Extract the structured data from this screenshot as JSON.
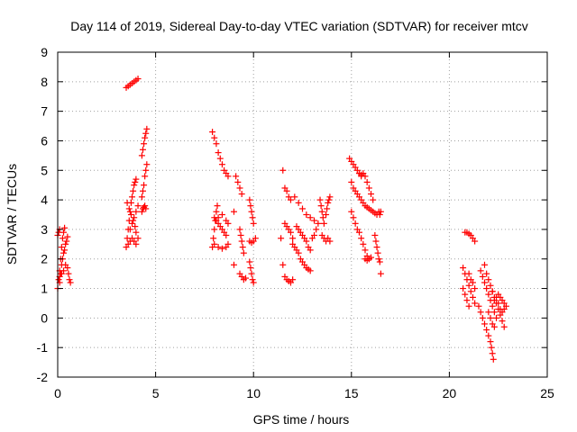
{
  "chart_data": {
    "type": "scatter",
    "title": "Day 114 of 2019, Sidereal Day-to-day VTEC variation (SDTVAR) for receiver mtcv",
    "xlabel": "GPS time / hours",
    "ylabel": "SDTVAR / TECUs",
    "xlim": [
      0,
      25
    ],
    "ylim": [
      -2,
      9
    ],
    "xticks": [
      0,
      5,
      10,
      15,
      20,
      25
    ],
    "yticks": [
      -2,
      -1,
      0,
      1,
      2,
      3,
      4,
      5,
      6,
      7,
      8,
      9
    ],
    "grid": true,
    "marker": "+",
    "color": "#ff0000",
    "tracks": [
      [
        [
          0.0,
          1.0
        ],
        [
          0.05,
          1.3
        ],
        [
          0.1,
          1.6
        ],
        [
          0.15,
          2.0
        ],
        [
          0.2,
          2.4
        ],
        [
          0.25,
          2.7
        ],
        [
          0.3,
          2.9
        ],
        [
          0.35,
          3.05
        ]
      ],
      [
        [
          0.0,
          2.8
        ],
        [
          0.05,
          2.9
        ],
        [
          0.1,
          3.0
        ]
      ],
      [
        [
          0.1,
          1.2
        ],
        [
          0.15,
          1.5
        ],
        [
          0.2,
          1.8
        ],
        [
          0.25,
          2.0
        ],
        [
          0.3,
          2.2
        ],
        [
          0.35,
          2.3
        ],
        [
          0.4,
          2.5
        ],
        [
          0.45,
          2.6
        ],
        [
          0.5,
          2.75
        ]
      ],
      [
        [
          0.1,
          1.4
        ],
        [
          0.2,
          1.5
        ],
        [
          0.3,
          1.6
        ],
        [
          0.4,
          1.8
        ],
        [
          0.5,
          1.7
        ],
        [
          0.55,
          1.5
        ],
        [
          0.6,
          1.3
        ],
        [
          0.65,
          1.2
        ]
      ],
      [
        [
          3.5,
          7.8
        ],
        [
          3.6,
          7.85
        ],
        [
          3.7,
          7.9
        ],
        [
          3.8,
          7.95
        ],
        [
          3.9,
          8.0
        ],
        [
          4.0,
          8.05
        ],
        [
          4.1,
          8.1
        ]
      ],
      [
        [
          3.5,
          2.4
        ],
        [
          3.55,
          2.7
        ],
        [
          3.6,
          3.0
        ],
        [
          3.65,
          3.3
        ],
        [
          3.7,
          3.6
        ],
        [
          3.75,
          3.9
        ],
        [
          3.8,
          4.1
        ],
        [
          3.85,
          4.3
        ],
        [
          3.9,
          4.5
        ],
        [
          3.95,
          4.6
        ],
        [
          4.0,
          4.7
        ]
      ],
      [
        [
          3.55,
          3.9
        ],
        [
          3.65,
          3.7
        ],
        [
          3.75,
          3.5
        ],
        [
          3.85,
          3.3
        ],
        [
          3.95,
          3.1
        ],
        [
          4.0,
          2.9
        ]
      ],
      [
        [
          3.6,
          2.5
        ],
        [
          3.7,
          2.6
        ],
        [
          3.8,
          2.7
        ],
        [
          3.9,
          2.6
        ],
        [
          4.0,
          2.5
        ],
        [
          4.1,
          2.7
        ]
      ],
      [
        [
          3.7,
          3.0
        ],
        [
          3.8,
          3.2
        ],
        [
          3.9,
          3.4
        ],
        [
          4.0,
          3.6
        ],
        [
          4.1,
          3.8
        ]
      ],
      [
        [
          4.3,
          3.6
        ],
        [
          4.35,
          3.7
        ],
        [
          4.4,
          3.75
        ],
        [
          4.45,
          3.8
        ],
        [
          4.5,
          3.7
        ]
      ],
      [
        [
          4.3,
          4.1
        ],
        [
          4.35,
          4.3
        ],
        [
          4.4,
          4.5
        ],
        [
          4.45,
          4.8
        ],
        [
          4.5,
          5.0
        ],
        [
          4.55,
          5.2
        ]
      ],
      [
        [
          4.3,
          5.5
        ],
        [
          4.35,
          5.7
        ],
        [
          4.4,
          5.9
        ],
        [
          4.45,
          6.1
        ],
        [
          4.5,
          6.25
        ],
        [
          4.55,
          6.4
        ]
      ],
      [
        [
          7.9,
          6.3
        ],
        [
          8.0,
          6.1
        ],
        [
          8.1,
          5.9
        ],
        [
          8.2,
          5.6
        ],
        [
          8.3,
          5.4
        ],
        [
          8.4,
          5.2
        ],
        [
          8.5,
          5.0
        ],
        [
          8.6,
          4.9
        ],
        [
          8.7,
          4.8
        ]
      ],
      [
        [
          7.9,
          2.4
        ],
        [
          7.95,
          2.7
        ],
        [
          8.0,
          3.0
        ],
        [
          8.05,
          3.3
        ],
        [
          8.1,
          3.6
        ],
        [
          8.15,
          3.8
        ]
      ],
      [
        [
          8.0,
          3.4
        ],
        [
          8.1,
          3.3
        ],
        [
          8.2,
          3.2
        ],
        [
          8.3,
          3.1
        ],
        [
          8.4,
          3.0
        ],
        [
          8.5,
          2.9
        ],
        [
          8.6,
          2.8
        ]
      ],
      [
        [
          8.0,
          2.5
        ],
        [
          8.2,
          2.4
        ],
        [
          8.4,
          2.35
        ],
        [
          8.6,
          2.4
        ],
        [
          8.7,
          2.5
        ]
      ],
      [
        [
          8.2,
          3.4
        ],
        [
          8.4,
          3.5
        ],
        [
          8.6,
          3.3
        ],
        [
          8.7,
          3.2
        ]
      ],
      [
        [
          9.0,
          3.6
        ]
      ],
      [
        [
          9.0,
          1.8
        ]
      ],
      [
        [
          9.1,
          4.8
        ],
        [
          9.2,
          4.6
        ],
        [
          9.3,
          4.4
        ],
        [
          9.4,
          4.2
        ]
      ],
      [
        [
          9.3,
          3.0
        ],
        [
          9.35,
          2.8
        ],
        [
          9.4,
          2.6
        ],
        [
          9.45,
          2.4
        ],
        [
          9.5,
          2.2
        ]
      ],
      [
        [
          9.3,
          1.5
        ],
        [
          9.4,
          1.4
        ],
        [
          9.5,
          1.3
        ],
        [
          9.6,
          1.35
        ]
      ],
      [
        [
          9.8,
          4.0
        ],
        [
          9.85,
          3.8
        ],
        [
          9.9,
          3.6
        ],
        [
          9.95,
          3.4
        ],
        [
          10.0,
          3.2
        ]
      ],
      [
        [
          9.8,
          2.6
        ],
        [
          9.9,
          2.55
        ],
        [
          10.0,
          2.6
        ],
        [
          10.1,
          2.7
        ]
      ],
      [
        [
          9.8,
          1.9
        ],
        [
          9.85,
          1.7
        ],
        [
          9.9,
          1.5
        ],
        [
          9.95,
          1.3
        ],
        [
          10.0,
          1.2
        ]
      ],
      [
        [
          11.5,
          5.0
        ]
      ],
      [
        [
          11.4,
          2.7
        ]
      ],
      [
        [
          11.5,
          1.8
        ]
      ],
      [
        [
          11.6,
          4.4
        ],
        [
          11.7,
          4.3
        ],
        [
          11.8,
          4.1
        ],
        [
          11.9,
          4.0
        ]
      ],
      [
        [
          11.6,
          3.2
        ],
        [
          11.7,
          3.1
        ],
        [
          11.8,
          3.0
        ],
        [
          11.9,
          2.9
        ],
        [
          12.0,
          2.7
        ]
      ],
      [
        [
          11.6,
          1.4
        ],
        [
          11.7,
          1.3
        ],
        [
          11.8,
          1.25
        ],
        [
          11.9,
          1.2
        ],
        [
          12.0,
          1.3
        ]
      ],
      [
        [
          12.0,
          2.5
        ],
        [
          12.1,
          2.4
        ],
        [
          12.2,
          2.3
        ],
        [
          12.3,
          2.2
        ],
        [
          12.4,
          2.0
        ],
        [
          12.5,
          1.9
        ],
        [
          12.6,
          1.8
        ],
        [
          12.7,
          1.7
        ],
        [
          12.8,
          1.65
        ],
        [
          12.9,
          1.6
        ]
      ],
      [
        [
          12.1,
          4.1
        ],
        [
          12.3,
          3.9
        ],
        [
          12.5,
          3.7
        ],
        [
          12.7,
          3.5
        ],
        [
          12.9,
          3.4
        ],
        [
          13.1,
          3.3
        ]
      ],
      [
        [
          12.2,
          3.1
        ],
        [
          12.3,
          3.0
        ],
        [
          12.4,
          2.9
        ],
        [
          12.5,
          2.8
        ],
        [
          12.6,
          2.7
        ],
        [
          12.7,
          2.6
        ],
        [
          12.8,
          2.4
        ],
        [
          12.9,
          2.3
        ]
      ],
      [
        [
          13.0,
          2.7
        ],
        [
          13.1,
          2.8
        ],
        [
          13.2,
          3.0
        ],
        [
          13.3,
          3.2
        ]
      ],
      [
        [
          13.4,
          4.0
        ],
        [
          13.45,
          3.8
        ],
        [
          13.5,
          3.6
        ],
        [
          13.55,
          3.4
        ],
        [
          13.6,
          3.2
        ]
      ],
      [
        [
          13.5,
          2.8
        ],
        [
          13.6,
          2.7
        ],
        [
          13.7,
          2.6
        ],
        [
          13.8,
          2.7
        ],
        [
          13.9,
          2.6
        ]
      ],
      [
        [
          13.7,
          3.5
        ],
        [
          13.75,
          3.7
        ],
        [
          13.8,
          3.9
        ],
        [
          13.85,
          4.0
        ],
        [
          13.9,
          4.1
        ]
      ],
      [
        [
          14.9,
          5.4
        ],
        [
          15.0,
          5.3
        ],
        [
          15.1,
          5.2
        ],
        [
          15.2,
          5.1
        ],
        [
          15.3,
          5.0
        ],
        [
          15.4,
          4.9
        ],
        [
          15.5,
          4.8
        ]
      ],
      [
        [
          15.0,
          4.6
        ],
        [
          15.1,
          4.4
        ],
        [
          15.2,
          4.3
        ],
        [
          15.3,
          4.2
        ],
        [
          15.4,
          4.1
        ],
        [
          15.5,
          4.0
        ],
        [
          15.6,
          3.9
        ],
        [
          15.7,
          3.8
        ],
        [
          15.8,
          3.75
        ],
        [
          15.9,
          3.7
        ],
        [
          16.0,
          3.65
        ],
        [
          16.1,
          3.6
        ],
        [
          16.2,
          3.55
        ],
        [
          16.3,
          3.5
        ]
      ],
      [
        [
          15.0,
          3.6
        ],
        [
          15.1,
          3.4
        ],
        [
          15.2,
          3.2
        ],
        [
          15.3,
          3.0
        ],
        [
          15.4,
          2.9
        ],
        [
          15.5,
          2.7
        ],
        [
          15.6,
          2.5
        ],
        [
          15.7,
          2.3
        ],
        [
          15.8,
          2.1
        ],
        [
          15.9,
          2.0
        ]
      ],
      [
        [
          15.4,
          4.9
        ],
        [
          15.5,
          4.85
        ],
        [
          15.6,
          4.9
        ],
        [
          15.7,
          4.8
        ],
        [
          15.8,
          4.6
        ],
        [
          15.9,
          4.4
        ],
        [
          16.0,
          4.2
        ],
        [
          16.1,
          4.0
        ]
      ],
      [
        [
          15.7,
          2.0
        ],
        [
          15.8,
          1.95
        ],
        [
          15.9,
          2.0
        ],
        [
          16.0,
          2.05
        ]
      ],
      [
        [
          16.2,
          2.8
        ],
        [
          16.25,
          2.6
        ],
        [
          16.3,
          2.4
        ],
        [
          16.35,
          2.2
        ],
        [
          16.4,
          2.0
        ],
        [
          16.45,
          1.9
        ]
      ],
      [
        [
          16.4,
          3.6
        ],
        [
          16.45,
          3.5
        ]
      ],
      [
        [
          16.5,
          3.6
        ]
      ],
      [
        [
          16.5,
          1.5
        ]
      ],
      [
        [
          20.8,
          2.9
        ],
        [
          20.9,
          2.9
        ],
        [
          21.0,
          2.85
        ],
        [
          21.1,
          2.8
        ],
        [
          21.2,
          2.7
        ],
        [
          21.3,
          2.6
        ]
      ],
      [
        [
          20.7,
          1.7
        ],
        [
          20.8,
          1.5
        ],
        [
          20.9,
          1.3
        ],
        [
          21.0,
          1.1
        ],
        [
          21.1,
          0.9
        ],
        [
          21.2,
          0.7
        ],
        [
          21.3,
          0.5
        ]
      ],
      [
        [
          20.7,
          1.0
        ],
        [
          20.8,
          0.8
        ],
        [
          20.9,
          0.6
        ],
        [
          21.0,
          0.4
        ]
      ],
      [
        [
          21.0,
          1.5
        ],
        [
          21.1,
          1.3
        ],
        [
          21.2,
          1.2
        ],
        [
          21.3,
          1.0
        ]
      ],
      [
        [
          21.5,
          0.4
        ],
        [
          21.6,
          0.2
        ],
        [
          21.7,
          0.0
        ],
        [
          21.8,
          -0.2
        ],
        [
          21.9,
          -0.4
        ],
        [
          22.0,
          -0.6
        ],
        [
          22.1,
          -0.8
        ],
        [
          22.15,
          -1.0
        ],
        [
          22.2,
          -1.2
        ],
        [
          22.25,
          -1.4
        ]
      ],
      [
        [
          21.6,
          1.6
        ],
        [
          21.7,
          1.4
        ],
        [
          21.8,
          1.2
        ],
        [
          21.9,
          1.0
        ],
        [
          22.0,
          0.8
        ],
        [
          22.1,
          0.6
        ],
        [
          22.2,
          0.4
        ],
        [
          22.3,
          0.2
        ],
        [
          22.4,
          0.0
        ]
      ],
      [
        [
          21.8,
          1.8
        ],
        [
          21.9,
          1.5
        ],
        [
          22.0,
          1.3
        ],
        [
          22.1,
          1.1
        ],
        [
          22.2,
          0.9
        ]
      ],
      [
        [
          22.2,
          0.9
        ],
        [
          22.3,
          0.7
        ],
        [
          22.4,
          0.5
        ],
        [
          22.5,
          0.3
        ],
        [
          22.6,
          0.1
        ],
        [
          22.7,
          -0.1
        ],
        [
          22.8,
          -0.3
        ]
      ],
      [
        [
          22.3,
          0.6
        ],
        [
          22.4,
          0.7
        ],
        [
          22.5,
          0.8
        ],
        [
          22.6,
          0.7
        ],
        [
          22.7,
          0.6
        ],
        [
          22.8,
          0.5
        ]
      ],
      [
        [
          22.5,
          0.5
        ],
        [
          22.6,
          0.3
        ],
        [
          22.7,
          0.2
        ],
        [
          22.8,
          0.3
        ],
        [
          22.9,
          0.4
        ]
      ],
      [
        [
          22.0,
          0.2
        ],
        [
          22.1,
          0.0
        ],
        [
          22.2,
          -0.2
        ],
        [
          22.3,
          -0.3
        ]
      ]
    ]
  }
}
